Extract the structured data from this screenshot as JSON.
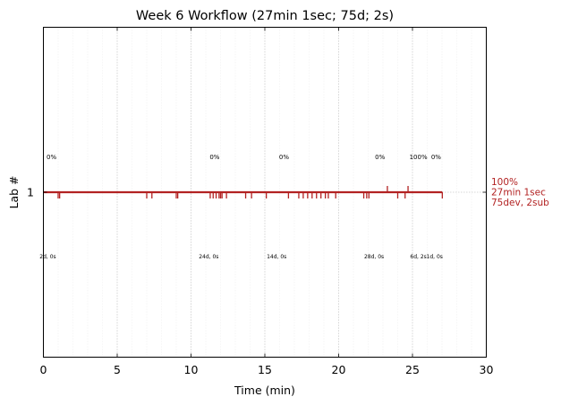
{
  "chart_data": {
    "type": "timeline",
    "title": "Week 6 Workflow (27min 1sec; 75d; 2s)",
    "xlabel": "Time (min)",
    "ylabel": "Lab #",
    "xlim": [
      0,
      30
    ],
    "x_ticks": [
      0,
      5,
      10,
      15,
      20,
      25,
      30
    ],
    "x_tick_labels": [
      "0",
      "5",
      "10",
      "15",
      "20",
      "25",
      "30"
    ],
    "y_ticks": [
      1
    ],
    "y_tick_labels": [
      "1"
    ],
    "grid": "vertical dotted",
    "color": "#b22222",
    "series": [
      {
        "lab": 1,
        "start": 0,
        "end": 27.02,
        "dev_events": [
          1.0,
          1.1,
          7.0,
          7.35,
          9.0,
          9.1,
          11.3,
          11.5,
          11.7,
          11.9,
          12.0,
          12.1,
          12.4,
          13.7,
          14.1,
          15.1,
          16.6,
          17.3,
          17.6,
          17.9,
          18.2,
          18.5,
          18.8,
          19.1,
          19.3,
          19.8,
          21.7,
          21.9,
          22.05,
          24.0,
          24.5,
          27.02
        ],
        "sub_events": [
          23.3,
          24.7
        ]
      }
    ],
    "top_annotations": [
      {
        "x": 0.55,
        "text": "0%"
      },
      {
        "x": 11.6,
        "text": "0%"
      },
      {
        "x": 16.3,
        "text": "0%"
      },
      {
        "x": 22.8,
        "text": "0%"
      },
      {
        "x": 25.4,
        "text": "100%"
      },
      {
        "x": 26.6,
        "text": "0%"
      }
    ],
    "bottom_annotations": [
      {
        "x": 0.3,
        "text": "2d, 0s"
      },
      {
        "x": 11.2,
        "text": "24d, 0s"
      },
      {
        "x": 15.8,
        "text": "14d, 0s"
      },
      {
        "x": 22.4,
        "text": "28d, 0s"
      },
      {
        "x": 25.4,
        "text": "6d, 2s"
      },
      {
        "x": 26.5,
        "text": "1d, 0s"
      }
    ],
    "right_annotation": [
      "100%",
      "27min 1sec",
      "75dev, 2sub"
    ]
  }
}
